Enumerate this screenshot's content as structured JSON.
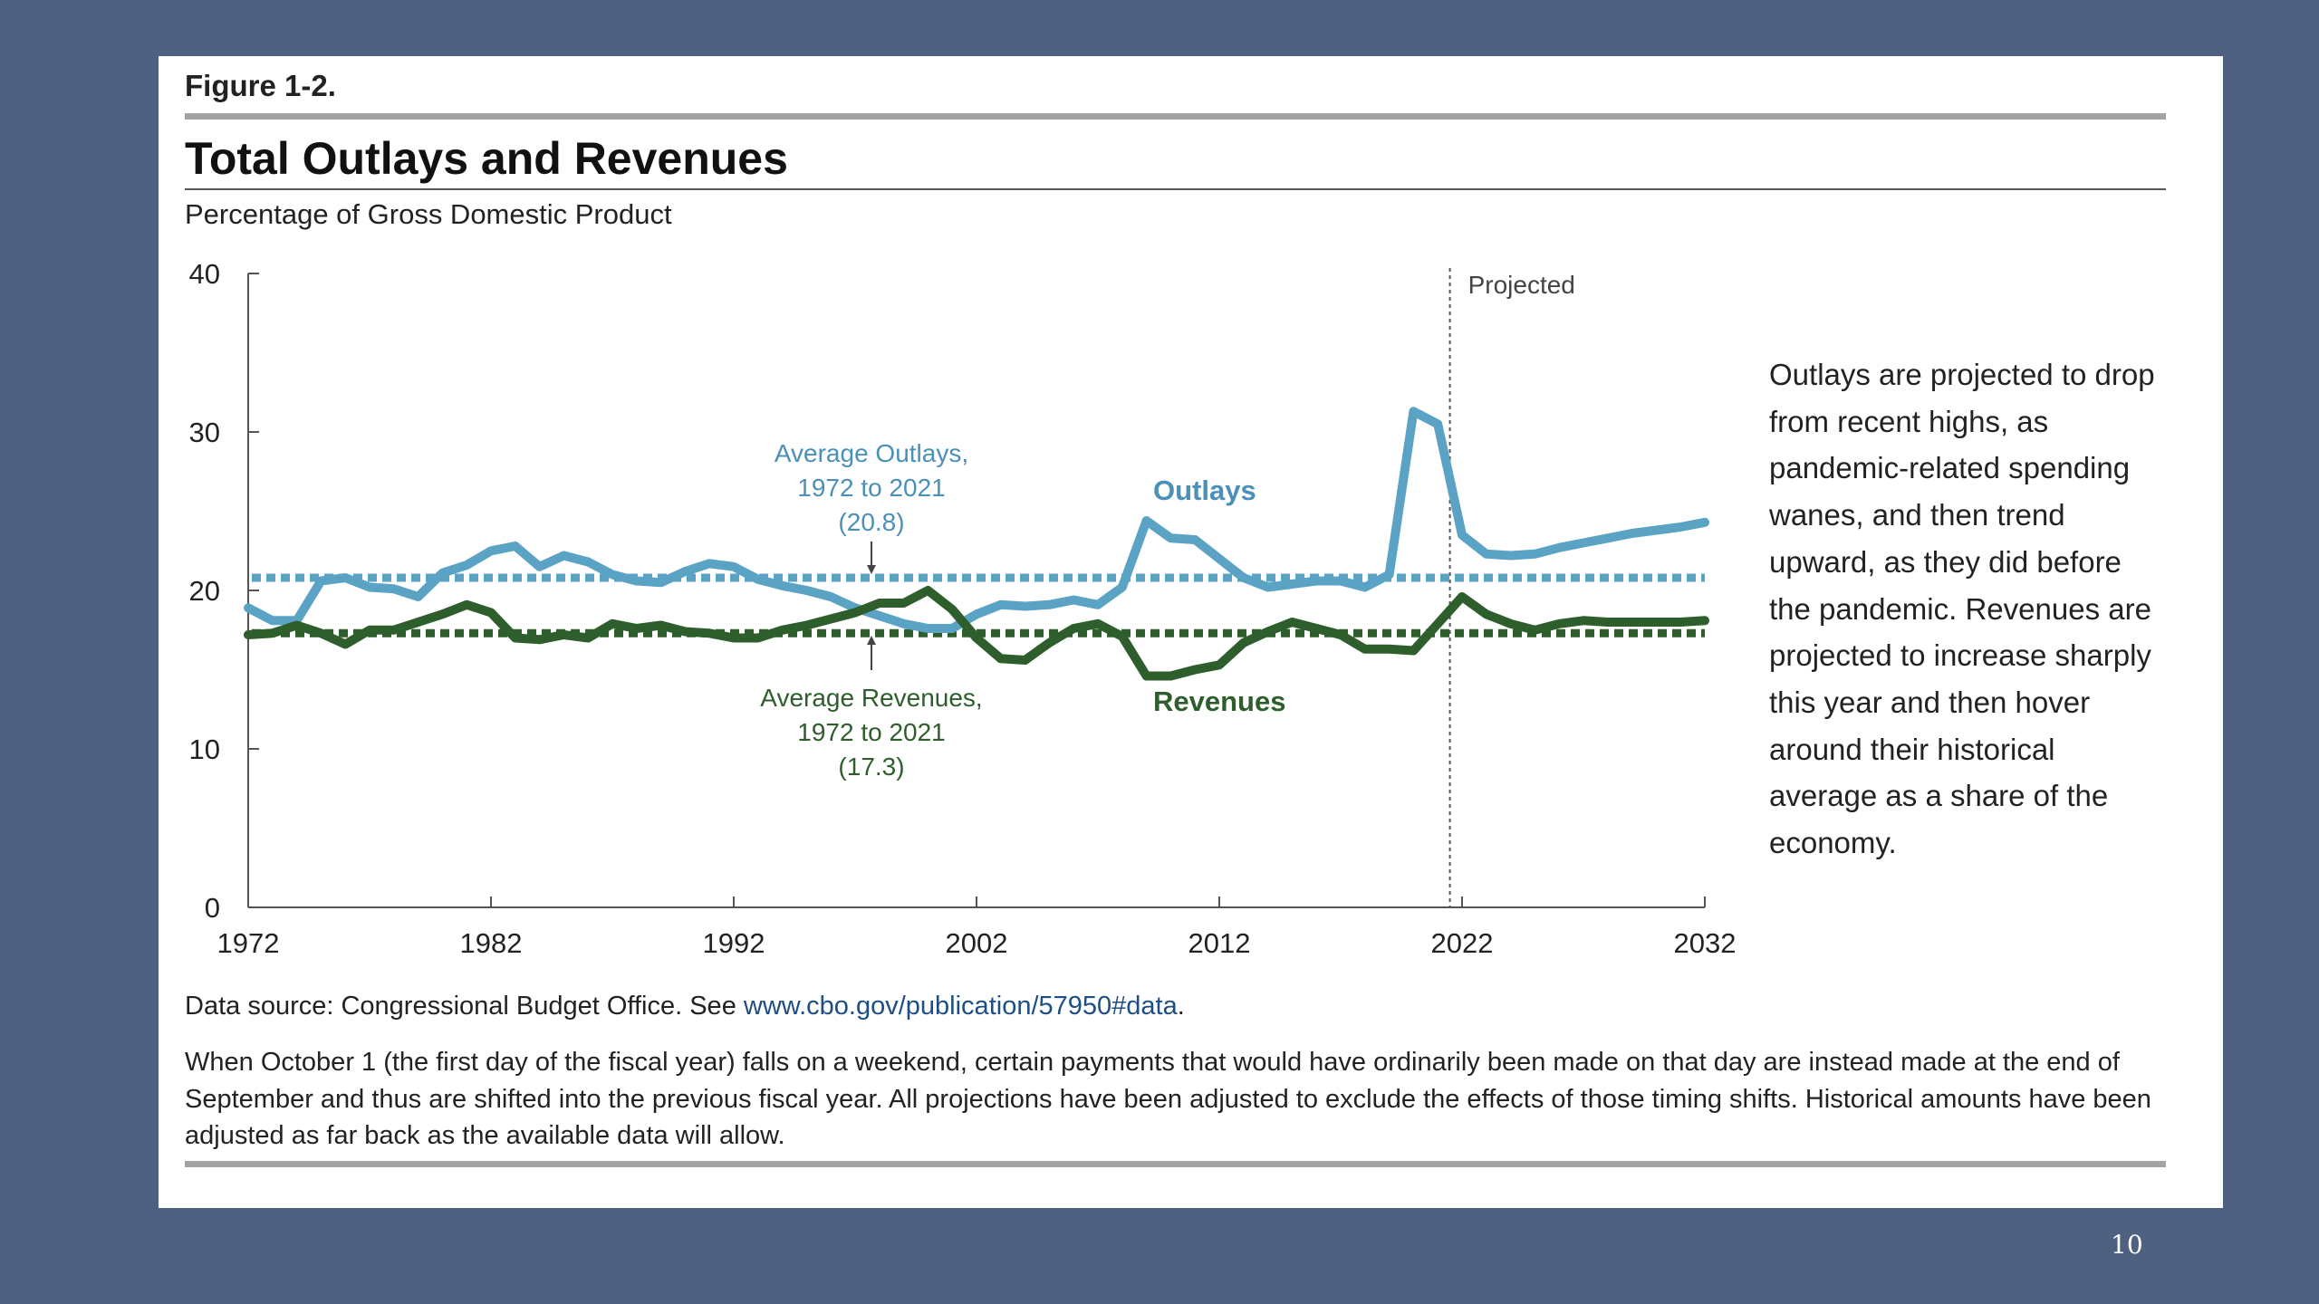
{
  "figure": {
    "label": "Figure 1-2.",
    "title": "Total Outlays and Revenues",
    "subtitle": "Percentage of Gross Domestic Product",
    "side_note": "Outlays are projected to drop from recent highs, as pandemic-related spending wanes, and then trend upward, as they did before the pandemic. Revenues are projected to increase sharply this year and then hover around their historical average as a share of the economy.",
    "source_prefix": "Data source: Congressional Budget Office. See ",
    "source_link": "www.cbo.gov/publication/57950#data",
    "source_suffix": ".",
    "footnote": "When October 1 (the first day of the fiscal year) falls on a weekend, certain payments that would have ordinarily been made on that day are instead made at the end of September and thus are shifted into the previous fiscal year. All projections have been adjusted to exclude the effects of those timing shifts. Historical amounts have been adjusted as far back as the available data will allow."
  },
  "page_number": "10",
  "colors": {
    "background": "#4f6180",
    "outlays": "#5ba3c4",
    "revenues": "#2e5e2c",
    "outlays_label": "#4a90b8",
    "revenues_label": "#2e5e2c"
  },
  "chart_data": {
    "type": "line",
    "title": "Total Outlays and Revenues",
    "ylabel": "Percentage of Gross Domestic Product",
    "xlim": [
      1972,
      2032
    ],
    "ylim": [
      0,
      40
    ],
    "x_ticks": [
      1972,
      1982,
      1992,
      2002,
      2012,
      2022,
      2032
    ],
    "y_ticks": [
      0,
      10,
      20,
      30,
      40
    ],
    "grid": false,
    "projection_start": 2021.5,
    "projection_label": "Projected",
    "x": [
      1972,
      1973,
      1974,
      1975,
      1976,
      1977,
      1978,
      1979,
      1980,
      1981,
      1982,
      1983,
      1984,
      1985,
      1986,
      1987,
      1988,
      1989,
      1990,
      1991,
      1992,
      1993,
      1994,
      1995,
      1996,
      1997,
      1998,
      1999,
      2000,
      2001,
      2002,
      2003,
      2004,
      2005,
      2006,
      2007,
      2008,
      2009,
      2010,
      2011,
      2012,
      2013,
      2014,
      2015,
      2016,
      2017,
      2018,
      2019,
      2020,
      2021,
      2022,
      2023,
      2024,
      2025,
      2026,
      2027,
      2028,
      2029,
      2030,
      2031,
      2032
    ],
    "series": [
      {
        "name": "Outlays",
        "values": [
          18.9,
          18.1,
          18.1,
          20.6,
          20.8,
          20.2,
          20.1,
          19.6,
          21.1,
          21.6,
          22.5,
          22.8,
          21.5,
          22.2,
          21.8,
          21.0,
          20.6,
          20.5,
          21.2,
          21.7,
          21.5,
          20.7,
          20.3,
          20.0,
          19.6,
          18.9,
          18.4,
          17.9,
          17.6,
          17.6,
          18.5,
          19.1,
          19.0,
          19.1,
          19.4,
          19.1,
          20.2,
          24.4,
          23.3,
          23.2,
          22.0,
          20.8,
          20.2,
          20.4,
          20.6,
          20.6,
          20.2,
          21.0,
          31.3,
          30.5,
          23.5,
          22.3,
          22.2,
          22.3,
          22.7,
          23.0,
          23.3,
          23.6,
          23.8,
          24.0,
          24.3
        ]
      },
      {
        "name": "Revenues",
        "values": [
          17.2,
          17.3,
          17.8,
          17.3,
          16.6,
          17.5,
          17.5,
          18.0,
          18.5,
          19.1,
          18.6,
          17.0,
          16.9,
          17.2,
          17.0,
          17.9,
          17.6,
          17.8,
          17.4,
          17.3,
          17.0,
          17.0,
          17.5,
          17.8,
          18.2,
          18.6,
          19.2,
          19.2,
          20.0,
          18.8,
          17.0,
          15.7,
          15.6,
          16.7,
          17.6,
          17.9,
          17.1,
          14.6,
          14.6,
          15.0,
          15.3,
          16.7,
          17.4,
          18.0,
          17.6,
          17.2,
          16.3,
          16.3,
          16.2,
          17.9,
          19.6,
          18.5,
          17.9,
          17.5,
          17.9,
          18.1,
          18.0,
          18.0,
          18.0,
          18.0,
          18.1
        ]
      }
    ],
    "averages": [
      {
        "name": "Average Outlays",
        "value": 20.8,
        "lines": [
          "Average Outlays,",
          "1972 to 2021",
          "(20.8)"
        ]
      },
      {
        "name": "Average Revenues",
        "value": 17.3,
        "lines": [
          "Average Revenues,",
          "1972 to 2021",
          "(17.3)"
        ]
      }
    ],
    "series_labels": [
      "Outlays",
      "Revenues"
    ]
  }
}
